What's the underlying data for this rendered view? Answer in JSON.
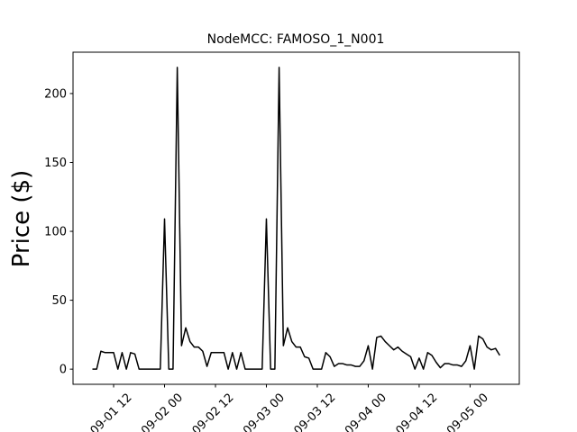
{
  "chart_data": {
    "type": "line",
    "title": "NodeMCC: FAMOSO_1_N001",
    "y_label": "Price ($)",
    "x": [
      "09-01 07",
      "09-01 08",
      "09-01 09",
      "09-01 10",
      "09-01 11",
      "09-01 12",
      "09-01 13",
      "09-01 14",
      "09-01 15",
      "09-01 16",
      "09-01 17",
      "09-01 18",
      "09-01 19",
      "09-01 20",
      "09-01 21",
      "09-01 22",
      "09-01 23",
      "09-02 00",
      "09-02 01",
      "09-02 02",
      "09-02 03",
      "09-02 04",
      "09-02 05",
      "09-02 06",
      "09-02 07",
      "09-02 08",
      "09-02 09",
      "09-02 10",
      "09-02 11",
      "09-02 12",
      "09-02 13",
      "09-02 14",
      "09-02 15",
      "09-02 16",
      "09-02 17",
      "09-02 18",
      "09-02 19",
      "09-02 20",
      "09-02 21",
      "09-02 22",
      "09-02 23",
      "09-03 00",
      "09-03 01",
      "09-03 02",
      "09-03 03",
      "09-03 04",
      "09-03 05",
      "09-03 06",
      "09-03 07",
      "09-03 08",
      "09-03 09",
      "09-03 10",
      "09-03 11",
      "09-03 12",
      "09-03 13",
      "09-03 14",
      "09-03 15",
      "09-03 16",
      "09-03 17",
      "09-03 18",
      "09-03 19",
      "09-03 20",
      "09-03 21",
      "09-03 22",
      "09-03 23",
      "09-04 00",
      "09-04 01",
      "09-04 02",
      "09-04 03",
      "09-04 04",
      "09-04 05",
      "09-04 06",
      "09-04 07",
      "09-04 08",
      "09-04 09",
      "09-04 10",
      "09-04 11",
      "09-04 12",
      "09-04 13",
      "09-04 14",
      "09-04 15",
      "09-04 16",
      "09-04 17",
      "09-04 18",
      "09-04 19",
      "09-04 20",
      "09-04 21",
      "09-04 22",
      "09-04 23",
      "09-05 00",
      "09-05 01",
      "09-05 02",
      "09-05 03",
      "09-05 04",
      "09-05 05",
      "09-05 06",
      "09-05 07"
    ],
    "series": [
      {
        "color": "#000000",
        "values": [
          0,
          0,
          13,
          12,
          12,
          12,
          0,
          12,
          0,
          12,
          11,
          0,
          0,
          0,
          0,
          0,
          0,
          109,
          0,
          0,
          219,
          17,
          30,
          20,
          16,
          16,
          13,
          2,
          12,
          12,
          12,
          12,
          0,
          12,
          0,
          12,
          0,
          0,
          0,
          0,
          0,
          109,
          0,
          0,
          219,
          17,
          30,
          20,
          16,
          16,
          9,
          8,
          0,
          0,
          0,
          12,
          9,
          2,
          4,
          4,
          3,
          3,
          2,
          2,
          6,
          17,
          0,
          23,
          24,
          20,
          17,
          14,
          16,
          13,
          11,
          9,
          0,
          8,
          0,
          12,
          10,
          5,
          1,
          4,
          4,
          3,
          3,
          2,
          6,
          17,
          0,
          24,
          22,
          16,
          14,
          15,
          10
        ]
      }
    ],
    "xlim": [
      "09-01 02:26",
      "09-05 11:36"
    ],
    "xticks": [
      "09-01 12",
      "09-02 00",
      "09-02 12",
      "09-03 00",
      "09-03 12",
      "09-04 00",
      "09-04 12",
      "09-05 00"
    ],
    "ylim": [
      -11,
      230
    ],
    "yticks": [
      0,
      50,
      100,
      150,
      200
    ],
    "grid": false
  }
}
